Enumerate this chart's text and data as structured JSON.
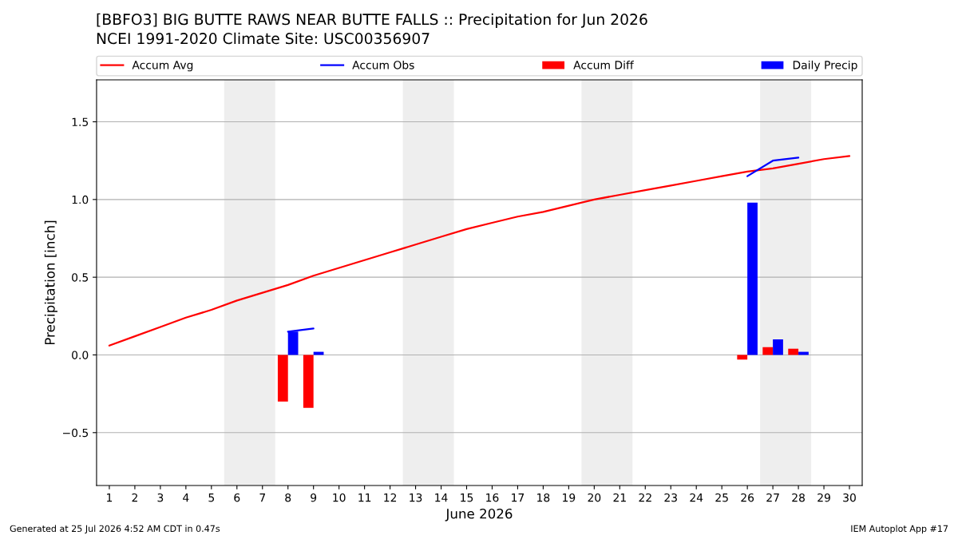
{
  "chart_data": {
    "type": "bar",
    "title": "[BBFO3] BIG BUTTE RAWS NEAR BUTTE FALLS :: Precipitation for Jun 2026",
    "subtitle": "NCEI 1991-2020 Climate Site: USC00356907",
    "xlabel": "June 2026",
    "ylabel": "Precipitation [inch]",
    "x": [
      1,
      2,
      3,
      4,
      5,
      6,
      7,
      8,
      9,
      10,
      11,
      12,
      13,
      14,
      15,
      16,
      17,
      18,
      19,
      20,
      21,
      22,
      23,
      24,
      25,
      26,
      27,
      28,
      29,
      30
    ],
    "xlim": [
      0.5,
      30.5
    ],
    "xticks": [
      1,
      2,
      3,
      4,
      5,
      6,
      7,
      8,
      9,
      10,
      11,
      12,
      13,
      14,
      15,
      16,
      17,
      18,
      19,
      20,
      21,
      22,
      23,
      24,
      25,
      26,
      27,
      28,
      29,
      30
    ],
    "ylim": [
      -0.84,
      1.77
    ],
    "yticks": [
      {
        "value": -0.5,
        "label": "−0.5"
      },
      {
        "value": 0,
        "label": "0.0"
      },
      0.5,
      {
        "value": 1,
        "label": "1.0"
      },
      1.5
    ],
    "grid": "y",
    "legend": "top",
    "bands": [
      {
        "axis": "x",
        "from": 5.5,
        "to": 7.5,
        "color": "#eeeeee"
      },
      {
        "axis": "x",
        "from": 12.5,
        "to": 14.5,
        "color": "#eeeeee"
      },
      {
        "axis": "x",
        "from": 19.5,
        "to": 21.5,
        "color": "#eeeeee"
      },
      {
        "axis": "x",
        "from": 26.5,
        "to": 28.5,
        "color": "#eeeeee"
      }
    ],
    "series": [
      {
        "name": "Accum Avg",
        "type": "line",
        "color": "#ff0000",
        "values": [
          0.06,
          0.12,
          0.18,
          0.24,
          0.29,
          0.35,
          0.4,
          0.45,
          0.51,
          0.56,
          0.61,
          0.66,
          0.71,
          0.76,
          0.81,
          0.85,
          0.89,
          0.92,
          0.96,
          1.0,
          1.03,
          1.06,
          1.09,
          1.12,
          1.15,
          1.18,
          1.2,
          1.23,
          1.26,
          1.28
        ]
      },
      {
        "name": "Accum Obs",
        "type": "line",
        "color": "#0000ff",
        "values": [
          null,
          null,
          null,
          null,
          null,
          null,
          null,
          0.15,
          0.17,
          null,
          null,
          null,
          null,
          null,
          null,
          null,
          null,
          null,
          null,
          null,
          null,
          null,
          null,
          null,
          null,
          1.15,
          1.25,
          1.27,
          null,
          null
        ]
      },
      {
        "name": "Accum Diff",
        "color": "#ff0000",
        "values": [
          null,
          null,
          null,
          null,
          null,
          null,
          null,
          -0.3,
          -0.34,
          null,
          null,
          null,
          null,
          null,
          null,
          null,
          null,
          null,
          null,
          null,
          null,
          null,
          null,
          null,
          null,
          -0.03,
          0.05,
          0.04,
          null,
          null
        ]
      },
      {
        "name": "Daily Precip",
        "color": "#0000ff",
        "values": [
          null,
          null,
          null,
          null,
          null,
          null,
          null,
          0.15,
          0.02,
          null,
          null,
          null,
          null,
          null,
          null,
          null,
          null,
          null,
          null,
          null,
          null,
          null,
          null,
          null,
          null,
          0.98,
          0.1,
          0.02,
          null,
          null
        ]
      }
    ],
    "annotations": [
      "Generated at 25 Jul 2026 4:52 AM CDT in 0.47s",
      "IEM Autoplot App #17"
    ]
  }
}
